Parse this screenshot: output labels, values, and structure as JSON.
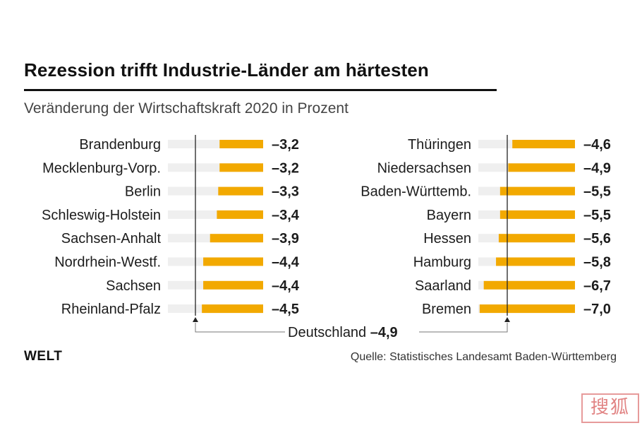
{
  "header": {
    "title": "Rezession trifft Industrie-Länder am härtesten",
    "subtitle": "Veränderung der Wirtschaftskraft 2020 in Prozent"
  },
  "footer": {
    "brand": "WELT",
    "source": "Quelle: Statistisches Landesamt Baden-Württemberg"
  },
  "watermark": {
    "text": "搜狐"
  },
  "colors": {
    "bar": "#f2a900",
    "track": "#efefef",
    "axis": "#222222",
    "text": "#1c1c1c"
  },
  "chart_data": {
    "type": "bar",
    "orientation": "horizontal",
    "title": "Rezession trifft Industrie-Länder am härtesten",
    "subtitle": "Veränderung der Wirtschaftskraft 2020 in Prozent",
    "unit": "Prozent",
    "panels": [
      {
        "categories": [
          "Brandenburg",
          "Mecklenburg-Vorp.",
          "Berlin",
          "Schleswig-Holstein",
          "Sachsen-Anhalt",
          "Nordrhein-Westf.",
          "Sachsen",
          "Rheinland-Pfalz"
        ],
        "values": [
          -3.2,
          -3.2,
          -3.3,
          -3.4,
          -3.9,
          -4.4,
          -4.4,
          -4.5
        ],
        "labels": [
          "–3,2",
          "–3,2",
          "–3,3",
          "–3,4",
          "–3,9",
          "–4,4",
          "–4,4",
          "–4,5"
        ]
      },
      {
        "categories": [
          "Thüringen",
          "Niedersachsen",
          "Baden-Württemb.",
          "Bayern",
          "Hessen",
          "Hamburg",
          "Saarland",
          "Bremen"
        ],
        "values": [
          -4.6,
          -4.9,
          -5.5,
          -5.5,
          -5.6,
          -5.8,
          -6.7,
          -7.0
        ],
        "labels": [
          "–4,6",
          "–4,9",
          "–5,5",
          "–5,5",
          "–5,6",
          "–5,8",
          "–6,7",
          "–7,0"
        ]
      }
    ],
    "reference": {
      "label": "Deutschland",
      "value": -4.9,
      "value_label": "–4,9"
    },
    "xlim": [
      -7.0,
      0
    ]
  }
}
